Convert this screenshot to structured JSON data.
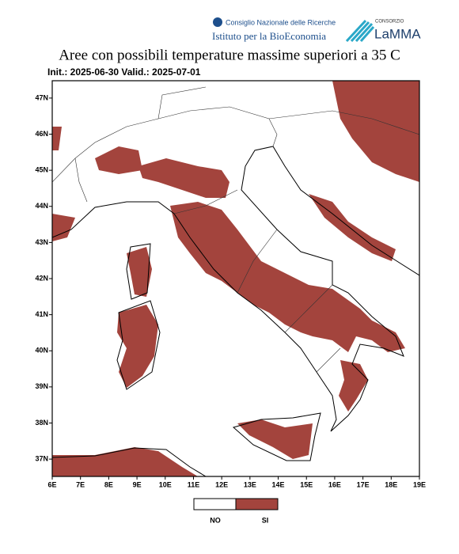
{
  "header": {
    "cnr": "Consiglio Nazionale delle Ricerche",
    "institute": "Istituto per la BioEconomia",
    "consortium": "CONSORZIO",
    "lamma": "LaMMA"
  },
  "map": {
    "title": "Aree con possibili temperature massime superiori a 35 C",
    "subtitle": "Init.: 2025-06-30 Valid.: 2025-07-01",
    "xlim": [
      6,
      19
    ],
    "ylim": [
      36.52,
      47.48
    ],
    "xticks": [
      {
        "value": 6,
        "label": "6E"
      },
      {
        "value": 7,
        "label": "7E"
      },
      {
        "value": 8,
        "label": "8E"
      },
      {
        "value": 9,
        "label": "9E"
      },
      {
        "value": 10,
        "label": "10E"
      },
      {
        "value": 11,
        "label": "11E"
      },
      {
        "value": 12,
        "label": "12E"
      },
      {
        "value": 13,
        "label": "13E"
      },
      {
        "value": 14,
        "label": "14E"
      },
      {
        "value": 15,
        "label": "15E"
      },
      {
        "value": 16,
        "label": "16E"
      },
      {
        "value": 17,
        "label": "17E"
      },
      {
        "value": 18,
        "label": "18E"
      },
      {
        "value": 19,
        "label": "19E"
      }
    ],
    "yticks": [
      {
        "value": 37,
        "label": "37N"
      },
      {
        "value": 38,
        "label": "38N"
      },
      {
        "value": 39,
        "label": "39N"
      },
      {
        "value": 40,
        "label": "40N"
      },
      {
        "value": 41,
        "label": "41N"
      },
      {
        "value": 42,
        "label": "42N"
      },
      {
        "value": 43,
        "label": "43N"
      },
      {
        "value": 44,
        "label": "44N"
      },
      {
        "value": 45,
        "label": "45N"
      },
      {
        "value": 46,
        "label": "46N"
      },
      {
        "value": 47,
        "label": "47N"
      }
    ],
    "legend": [
      "NO",
      "SI"
    ]
  }
}
